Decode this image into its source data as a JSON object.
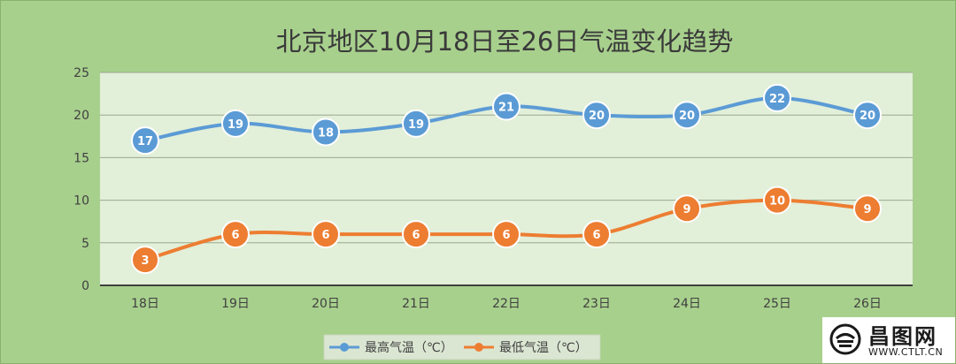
{
  "chart_data": {
    "type": "line",
    "title": "北京地区10月18日至26日气温变化趋势",
    "categories": [
      "18日",
      "19日",
      "20日",
      "21日",
      "22日",
      "23日",
      "24日",
      "25日",
      "26日"
    ],
    "series": [
      {
        "name": "最高气温（℃）",
        "values": [
          17,
          19,
          18,
          19,
          21,
          20,
          20,
          22,
          20
        ],
        "color": "#5b9bd5"
      },
      {
        "name": "最低气温（℃）",
        "values": [
          3,
          6,
          6,
          6,
          6,
          6,
          9,
          10,
          9
        ],
        "color": "#ed7d31"
      }
    ],
    "ylim": [
      0,
      25
    ],
    "yticks": [
      0,
      5,
      10,
      15,
      20,
      25
    ],
    "grid": true,
    "smooth": true,
    "data_labels": true,
    "legend_position": "bottom",
    "plot_background": "#e2efd9",
    "chart_background": "#a8d08d"
  },
  "watermark": {
    "name": "昌图网",
    "url": "WWW.CTLT.CN",
    "logo_icon": "satellite-dish-logo-icon"
  }
}
